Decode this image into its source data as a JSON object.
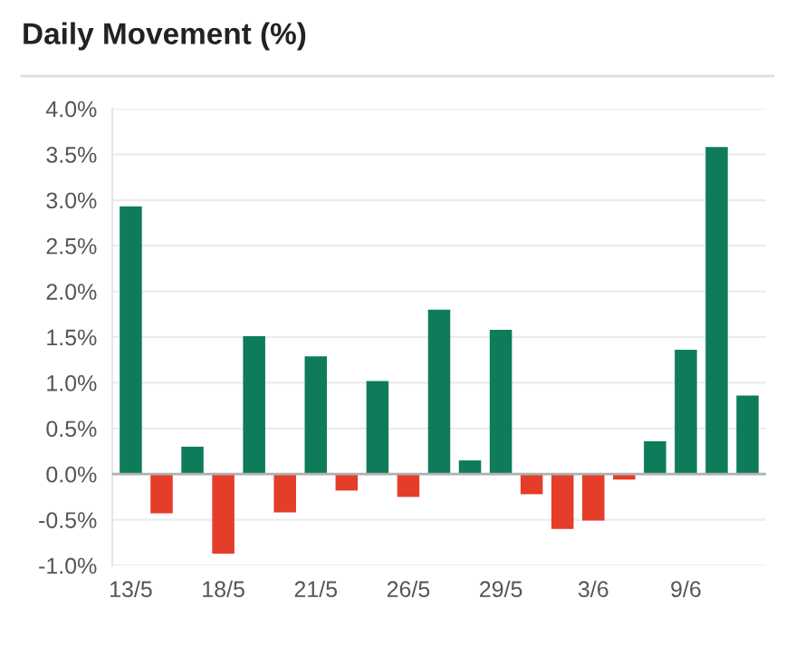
{
  "chart_data": {
    "type": "bar",
    "title": "Daily Movement (%)",
    "categories": [
      "13/5",
      null,
      null,
      "18/5",
      null,
      null,
      "21/5",
      null,
      null,
      "26/5",
      null,
      null,
      "29/5",
      null,
      null,
      "3/6",
      null,
      null,
      "9/6",
      null,
      null
    ],
    "values": [
      2.93,
      -0.43,
      0.3,
      -0.87,
      1.51,
      -0.42,
      1.29,
      -0.18,
      1.02,
      -0.25,
      1.8,
      0.15,
      1.58,
      -0.22,
      -0.6,
      -0.51,
      -0.06,
      0.36,
      1.36,
      3.58,
      0.86
    ],
    "colors": [
      "#0e7c5b",
      "#e43d2a",
      "#0e7c5b",
      "#e43d2a",
      "#0e7c5b",
      "#e43d2a",
      "#0e7c5b",
      "#e43d2a",
      "#0e7c5b",
      "#e43d2a",
      "#0e7c5b",
      "#0e7c5b",
      "#0e7c5b",
      "#e43d2a",
      "#e43d2a",
      "#e43d2a",
      "#e43d2a",
      "#0e7c5b",
      "#0e7c5b",
      "#0e7c5b",
      "#0e7c5b"
    ],
    "ylim": [
      -1,
      4
    ],
    "yticks": [
      {
        "value": -1,
        "label": "-1.0%"
      },
      {
        "value": -0.5,
        "label": "-0.5%"
      },
      {
        "value": 0,
        "label": "0.0%"
      },
      {
        "value": 0.5,
        "label": "0.5%"
      },
      {
        "value": 1,
        "label": "1.0%"
      },
      {
        "value": 1.5,
        "label": "1.5%"
      },
      {
        "value": 2,
        "label": "2.0%"
      },
      {
        "value": 2.5,
        "label": "2.5%"
      },
      {
        "value": 3,
        "label": "3.0%"
      },
      {
        "value": 3.5,
        "label": "3.5%"
      },
      {
        "value": 4,
        "label": "4.0%"
      }
    ],
    "grid": "y"
  }
}
